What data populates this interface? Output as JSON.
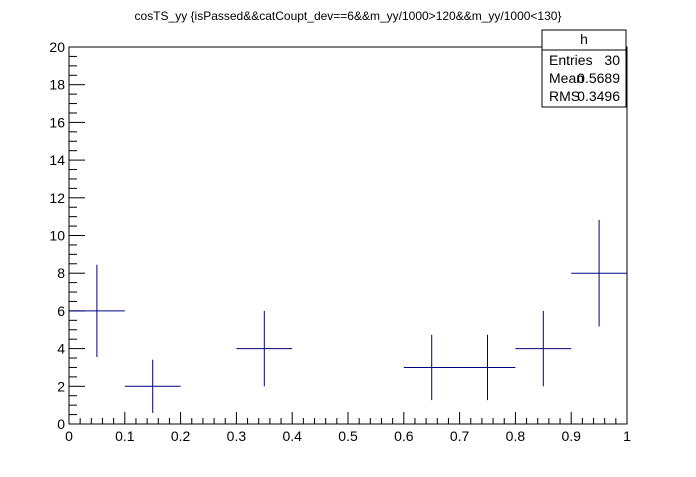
{
  "chart_data": {
    "type": "histogram",
    "title": "cosTS_yy {isPassed&&catCoupt_dev==6&&m_yy/1000>120&&m_yy/1000<130}",
    "xlabel": "",
    "ylabel": "",
    "xlim": [
      0,
      1
    ],
    "ylim": [
      0,
      20
    ],
    "x_ticks": [
      "0",
      "0.1",
      "0.2",
      "0.3",
      "0.4",
      "0.5",
      "0.6",
      "0.7",
      "0.8",
      "0.9",
      "1"
    ],
    "y_ticks": [
      "0",
      "2",
      "4",
      "6",
      "8",
      "10",
      "12",
      "14",
      "16",
      "18",
      "20"
    ],
    "bin_width": 0.1,
    "bin_centers": [
      0.05,
      0.15,
      0.25,
      0.35,
      0.45,
      0.55,
      0.65,
      0.75,
      0.85,
      0.95
    ],
    "counts": [
      6,
      2,
      0,
      4,
      0,
      0,
      3,
      3,
      4,
      8
    ],
    "marker_color": "#000080",
    "grid": false,
    "stats_box": {
      "name": "h",
      "placement": "top-right",
      "rows": [
        {
          "label": "Entries",
          "value": "30"
        },
        {
          "label": "Mean",
          "value": "0.5689"
        },
        {
          "label": "RMS",
          "value": "0.3496"
        }
      ]
    }
  }
}
